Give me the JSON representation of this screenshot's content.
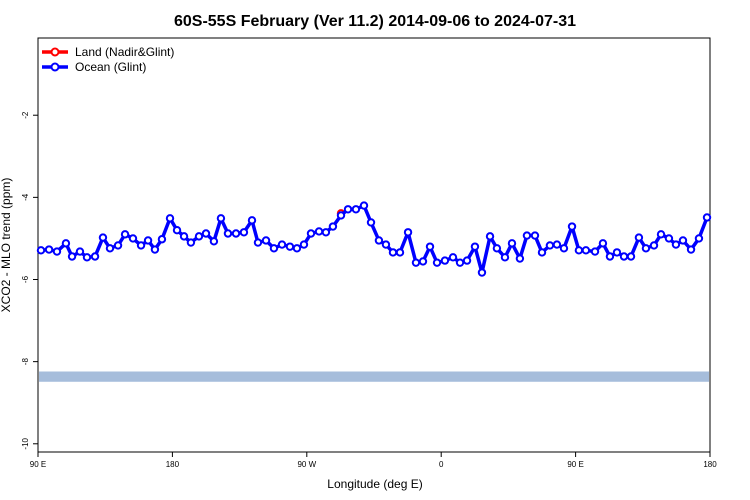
{
  "chart_data": {
    "type": "line",
    "title": "60S-55S February (Ver 11.2)   2014-09-06 to 2024-07-31",
    "x_label": "Longitude (deg E)",
    "y_label": "XCO2 - MLO trend (ppm)",
    "xlim": [
      90,
      540
    ],
    "ylim": [
      -10.2,
      -0.12
    ],
    "xticks": [
      {
        "value": 90,
        "label": "90 E"
      },
      180,
      {
        "value": 270,
        "label": "90 W"
      },
      {
        "value": 360,
        "label": "0"
      },
      {
        "value": 450,
        "label": "90 E"
      },
      {
        "value": 540,
        "label": "180"
      }
    ],
    "yticks": [
      -10,
      -8,
      -6,
      -4,
      -2
    ],
    "legend": "top-left",
    "band": {
      "color": "#a6bddb",
      "ylim": [
        -8.49,
        -8.24
      ]
    },
    "series": [
      {
        "name": "Land (Nadir&Glint)",
        "color": "#ff0000",
        "x": [
          292.9
        ],
        "values": [
          -4.39
        ]
      },
      {
        "name": "Ocean (Glint)",
        "color": "#0000ff",
        "x": [
          92.0,
          97.4,
          102.7,
          108.7,
          112.8,
          118.1,
          122.8,
          128.2,
          133.5,
          138.2,
          143.6,
          148.3,
          153.6,
          159.0,
          163.7,
          168.3,
          173.0,
          178.4,
          183.1,
          187.8,
          192.4,
          197.8,
          202.5,
          207.8,
          212.5,
          217.2,
          222.6,
          227.9,
          233.3,
          237.3,
          242.7,
          248.0,
          253.4,
          258.7,
          263.4,
          268.1,
          272.8,
          278.2,
          282.8,
          287.5,
          292.9,
          297.6,
          302.9,
          308.3,
          313.0,
          318.3,
          323.0,
          327.7,
          332.4,
          337.8,
          343.1,
          347.8,
          352.5,
          357.2,
          362.5,
          367.9,
          372.6,
          377.3,
          382.6,
          387.3,
          392.7,
          397.3,
          402.7,
          407.4,
          412.7,
          417.4,
          422.8,
          427.5,
          432.8,
          437.5,
          442.2,
          447.6,
          452.2,
          456.9,
          463.0,
          468.3,
          473.0,
          477.7,
          482.4,
          487.1,
          492.4,
          497.1,
          502.5,
          507.2,
          512.5,
          517.2,
          521.9,
          527.3,
          532.6,
          538.0
        ],
        "values": [
          -5.29,
          -5.27,
          -5.32,
          -5.12,
          -5.44,
          -5.32,
          -5.46,
          -5.44,
          -4.98,
          -5.24,
          -5.17,
          -4.9,
          -5.0,
          -5.17,
          -5.05,
          -5.27,
          -5.02,
          -4.51,
          -4.8,
          -4.95,
          -5.1,
          -4.95,
          -4.88,
          -5.07,
          -4.51,
          -4.88,
          -4.88,
          -4.85,
          -4.56,
          -5.1,
          -5.05,
          -5.24,
          -5.15,
          -5.2,
          -5.24,
          -5.15,
          -4.88,
          -4.83,
          -4.85,
          -4.71,
          -4.44,
          -4.29,
          -4.29,
          -4.2,
          -4.61,
          -5.05,
          -5.15,
          -5.34,
          -5.34,
          -4.85,
          -5.59,
          -5.56,
          -5.2,
          -5.59,
          -5.54,
          -5.46,
          -5.59,
          -5.54,
          -5.2,
          -5.83,
          -4.95,
          -5.24,
          -5.46,
          -5.12,
          -5.49,
          -4.93,
          -4.93,
          -5.34,
          -5.17,
          -5.15,
          -5.24,
          -4.71,
          -5.29,
          -5.29,
          -5.32,
          -5.12,
          -5.44,
          -5.34,
          -5.44,
          -5.44,
          -4.98,
          -5.24,
          -5.17,
          -4.9,
          -5.0,
          -5.15,
          -5.05,
          -5.27,
          -5.0,
          -4.49
        ]
      }
    ]
  }
}
